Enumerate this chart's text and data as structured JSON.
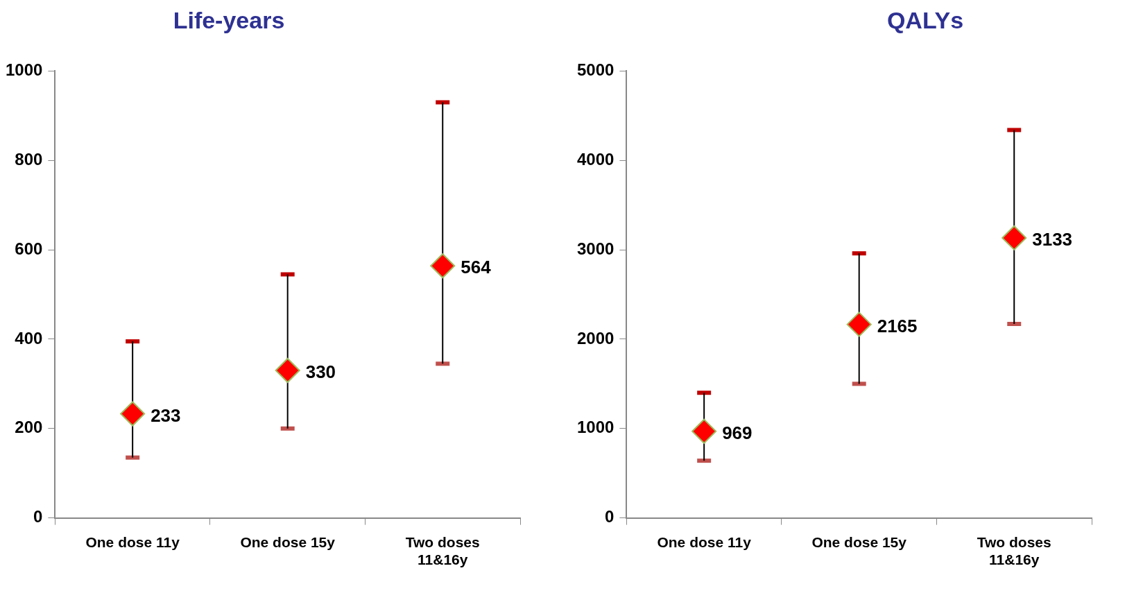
{
  "chart_data": [
    {
      "type": "scatter",
      "title": "Life-years",
      "categories": [
        "One dose 11y",
        "One dose 15y",
        "Two doses 11&16y"
      ],
      "values": [
        233,
        330,
        564
      ],
      "errors": [
        [
          135,
          395
        ],
        [
          200,
          545
        ],
        [
          345,
          930
        ]
      ],
      "color": "#ff0000",
      "marker": "diamond",
      "data_labels": true,
      "ylim": [
        0,
        1000
      ],
      "yticks": [
        0,
        200,
        400,
        600,
        800,
        1000
      ],
      "grid": false,
      "legend": false
    },
    {
      "type": "scatter",
      "title": "QALYs",
      "categories": [
        "One dose 11y",
        "One dose 15y",
        "Two doses 11&16y"
      ],
      "values": [
        969,
        2165,
        3133
      ],
      "errors": [
        [
          640,
          1400
        ],
        [
          1500,
          2960
        ],
        [
          2170,
          4340
        ]
      ],
      "color": "#ff0000",
      "marker": "diamond",
      "data_labels": true,
      "ylim": [
        0,
        5000
      ],
      "yticks": [
        0,
        1000,
        2000,
        3000,
        4000,
        5000
      ],
      "grid": false,
      "legend": false
    }
  ]
}
